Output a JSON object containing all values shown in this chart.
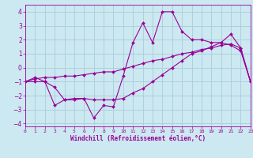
{
  "title": "",
  "xlabel": "Windchill (Refroidissement éolien,°C)",
  "background_color": "#cce8f0",
  "grid_color": "#aaccdd",
  "line_color": "#990099",
  "xlim": [
    0,
    23
  ],
  "ylim": [
    -4.2,
    4.5
  ],
  "xticks": [
    0,
    1,
    2,
    3,
    4,
    5,
    6,
    7,
    8,
    9,
    10,
    11,
    12,
    13,
    14,
    15,
    16,
    17,
    18,
    19,
    20,
    21,
    22,
    23
  ],
  "yticks": [
    -4,
    -3,
    -2,
    -1,
    0,
    1,
    2,
    3,
    4
  ],
  "series": [
    {
      "x": [
        0,
        1,
        2,
        3,
        4,
        5,
        6,
        7,
        8,
        9,
        10,
        11,
        12,
        13,
        14,
        15,
        16,
        17,
        18,
        19,
        20,
        21,
        22,
        23
      ],
      "y": [
        -1.0,
        -0.7,
        -1.0,
        -2.7,
        -2.3,
        -2.2,
        -2.2,
        -3.6,
        -2.7,
        -2.8,
        -0.6,
        1.8,
        3.2,
        1.8,
        4.0,
        4.0,
        2.6,
        2.0,
        2.0,
        1.8,
        1.8,
        1.6,
        1.2,
        -1.0
      ]
    },
    {
      "x": [
        0,
        1,
        2,
        3,
        4,
        5,
        6,
        7,
        8,
        9,
        10,
        11,
        12,
        13,
        14,
        15,
        16,
        17,
        18,
        19,
        20,
        21,
        22,
        23
      ],
      "y": [
        -1.0,
        -0.8,
        -0.7,
        -0.7,
        -0.6,
        -0.6,
        -0.5,
        -0.4,
        -0.3,
        -0.3,
        -0.1,
        0.1,
        0.3,
        0.5,
        0.6,
        0.8,
        1.0,
        1.1,
        1.3,
        1.4,
        1.6,
        1.7,
        1.4,
        -1.0
      ]
    },
    {
      "x": [
        0,
        1,
        2,
        3,
        4,
        5,
        6,
        7,
        8,
        9,
        10,
        11,
        12,
        13,
        14,
        15,
        16,
        17,
        18,
        19,
        20,
        21,
        22,
        23
      ],
      "y": [
        -1.0,
        -1.0,
        -1.0,
        -1.4,
        -2.3,
        -2.3,
        -2.2,
        -2.3,
        -2.3,
        -2.3,
        -2.2,
        -1.8,
        -1.5,
        -1.0,
        -0.5,
        0.0,
        0.5,
        1.0,
        1.2,
        1.5,
        1.8,
        2.4,
        1.4,
        -1.0
      ]
    }
  ]
}
